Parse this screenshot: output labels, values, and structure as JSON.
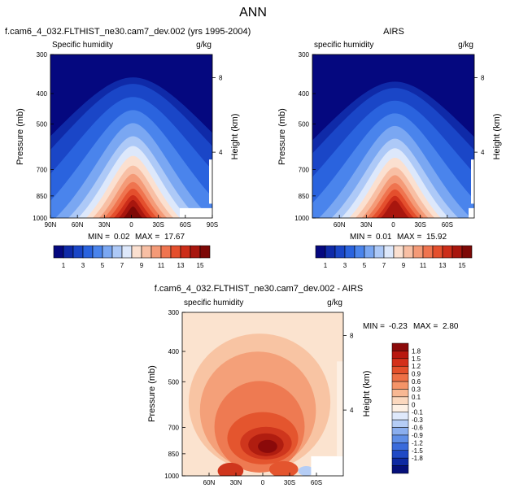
{
  "page_title": "ANN",
  "chart_data": [
    {
      "type": "heatmap",
      "title": "f.cam6_4_032.FLTHIST_ne30.cam7_dev.002 (yrs 1995-2004)",
      "left_label": "Specific humidity",
      "right_label": "g/kg",
      "ylabel": "Pressure (mb)",
      "ylabel_right": "Height (km)",
      "ylim": [
        1000,
        300
      ],
      "yticks": [
        "300",
        "400",
        "500",
        "700",
        "850",
        "1000"
      ],
      "right_ticks": [
        "8",
        "4"
      ],
      "xticks": [
        "90N",
        "60N",
        "30N",
        "0",
        "30S",
        "60S",
        "90S"
      ],
      "stats": {
        "min_label": "MIN =",
        "min": "0.02",
        "max_label": "MAX =",
        "max": "17.67"
      },
      "colorbar": {
        "ticks": [
          "1",
          "3",
          "5",
          "7",
          "9",
          "11",
          "13",
          "15"
        ],
        "colors": [
          "#05087f",
          "#0f2aa8",
          "#1a46c7",
          "#2a63de",
          "#4a84ec",
          "#7aa7f2",
          "#adc9f7",
          "#dde8fb",
          "#fbe0d0",
          "#f8bfa4",
          "#f49a77",
          "#ef744f",
          "#e44f2d",
          "#cc2d19",
          "#a8160e",
          "#7d0806"
        ]
      }
    },
    {
      "type": "heatmap",
      "title": "AIRS",
      "left_label": "specific humidity",
      "right_label": "g/kg",
      "ylabel": "Pressure (mb)",
      "ylabel_right": "Height (km)",
      "ylim": [
        1000,
        300
      ],
      "yticks": [
        "300",
        "400",
        "500",
        "700",
        "850",
        "1000"
      ],
      "right_ticks": [
        "8",
        "4"
      ],
      "xticks": [
        "60N",
        "30N",
        "0",
        "30S",
        "60S"
      ],
      "stats": {
        "min_label": "MIN =",
        "min": "0.01",
        "max_label": "MAX =",
        "max": "15.92"
      },
      "colorbar": {
        "ticks": [
          "1",
          "3",
          "5",
          "7",
          "9",
          "11",
          "13",
          "15"
        ]
      }
    },
    {
      "type": "heatmap",
      "title": "f.cam6_4_032.FLTHIST_ne30.cam7_dev.002 - AIRS",
      "left_label": "specific humidity",
      "right_label": "g/kg",
      "ylabel": "Pressure (mb)",
      "ylabel_right": "Height (km)",
      "ylim": [
        1000,
        300
      ],
      "yticks": [
        "300",
        "400",
        "500",
        "700",
        "850",
        "1000"
      ],
      "right_ticks": [
        "8",
        "4"
      ],
      "xticks": [
        "60N",
        "30N",
        "0",
        "30S",
        "60S"
      ],
      "stats": {
        "min_label": "MIN =",
        "min": "-0.23",
        "max_label": "MAX =",
        "max": "2.80"
      },
      "colorbar": {
        "ticks": [
          "1.8",
          "1.5",
          "1.2",
          "0.9",
          "0.6",
          "0.3",
          "0.1",
          "0",
          "-0.1",
          "-0.3",
          "-0.6",
          "-0.9",
          "-1.2",
          "-1.5",
          "-1.8"
        ],
        "colors": [
          "#8b0a0a",
          "#b8170f",
          "#d4301a",
          "#e4502b",
          "#ee7046",
          "#f59468",
          "#f8b893",
          "#fbd8be",
          "#fdf0e4",
          "#dfe9fb",
          "#b5cdf5",
          "#8aaeee",
          "#5f8ee6",
          "#3a6bdb",
          "#1f49c5",
          "#0e2aa2",
          "#05107a"
        ]
      }
    }
  ]
}
